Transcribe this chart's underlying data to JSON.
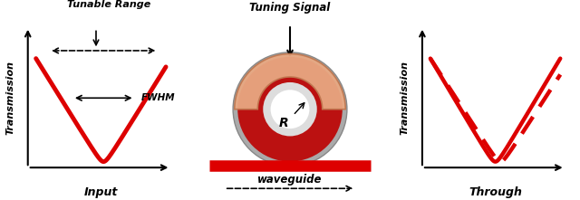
{
  "bg_color": "#ffffff",
  "red_color": "#dd0000",
  "black": "#000000",
  "arch_color": "#e8a882",
  "arch_edge": "#c07850",
  "ring_face": "#bb1111",
  "ring_edge": "#555555",
  "panel1_title": "Tunable Range",
  "panel1_xlabel": "Input",
  "panel1_ylabel": "Transmission",
  "panel1_fwhm": "FWHM",
  "panel2_label": "Tuning Signal",
  "panel2_waveguide": "waveguide",
  "panel3_xlabel": "Through",
  "panel3_ylabel": "Transmission",
  "fig_width": 6.4,
  "fig_height": 2.21,
  "fig_dpi": 100
}
